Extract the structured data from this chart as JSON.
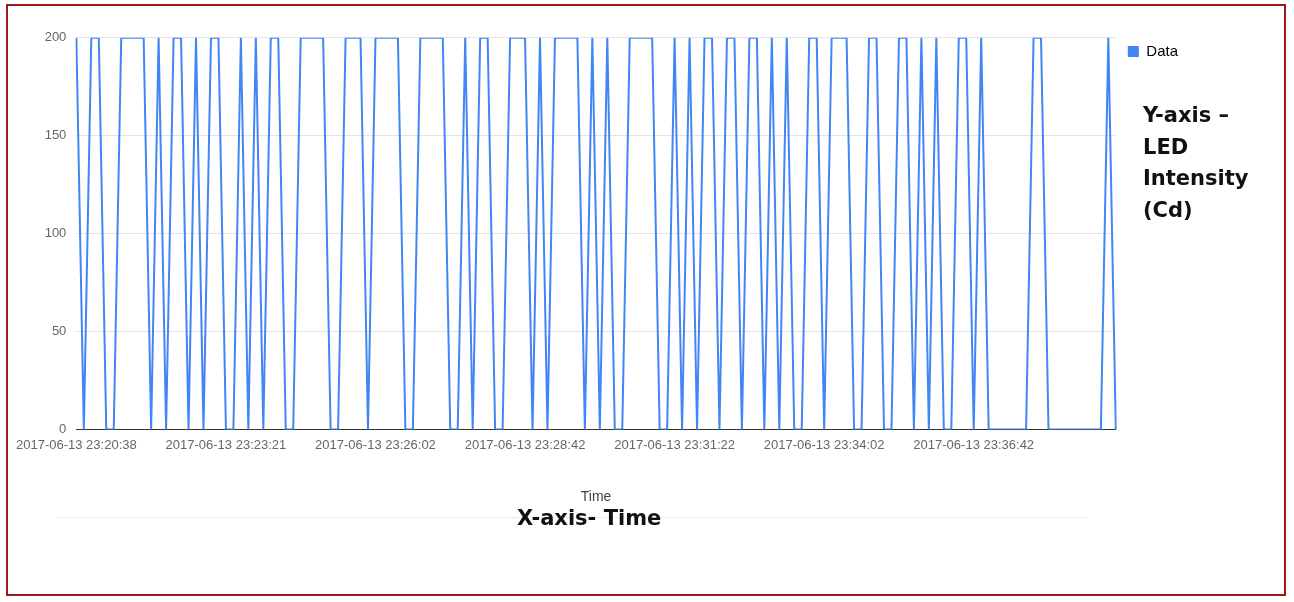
{
  "chart_data": {
    "type": "line",
    "xlabel": "Time",
    "categories": [
      "2017-06-13 23:20:38",
      null,
      null,
      null,
      null,
      null,
      null,
      null,
      null,
      null,
      null,
      null,
      null,
      null,
      null,
      null,
      null,
      null,
      null,
      null,
      "2017-06-13 23:23:21",
      null,
      null,
      null,
      null,
      null,
      null,
      null,
      null,
      null,
      null,
      null,
      null,
      null,
      null,
      null,
      null,
      null,
      null,
      null,
      "2017-06-13 23:26:02",
      null,
      null,
      null,
      null,
      null,
      null,
      null,
      null,
      null,
      null,
      null,
      null,
      null,
      null,
      null,
      null,
      null,
      null,
      null,
      "2017-06-13 23:28:42",
      null,
      null,
      null,
      null,
      null,
      null,
      null,
      null,
      null,
      null,
      null,
      null,
      null,
      null,
      null,
      null,
      null,
      null,
      null,
      "2017-06-13 23:31:22",
      null,
      null,
      null,
      null,
      null,
      null,
      null,
      null,
      null,
      null,
      null,
      null,
      null,
      null,
      null,
      null,
      null,
      null,
      null,
      "2017-06-13 23:34:02",
      null,
      null,
      null,
      null,
      null,
      null,
      null,
      null,
      null,
      null,
      null,
      null,
      null,
      null,
      null,
      null,
      null,
      null,
      null,
      "2017-06-13 23:36:42",
      null,
      null,
      null,
      null,
      null,
      null,
      null,
      null,
      null,
      null,
      null,
      null,
      null,
      null,
      null,
      null,
      null,
      null,
      null
    ],
    "series": [
      {
        "name": "Data",
        "color": "#4285f4",
        "values": [
          200,
          0,
          200,
          200,
          0,
          0,
          200,
          200,
          200,
          200,
          0,
          200,
          0,
          200,
          200,
          0,
          200,
          0,
          200,
          200,
          0,
          0,
          200,
          0,
          200,
          0,
          200,
          200,
          0,
          0,
          200,
          200,
          200,
          200,
          0,
          0,
          200,
          200,
          200,
          0,
          200,
          200,
          200,
          200,
          0,
          0,
          200,
          200,
          200,
          200,
          0,
          0,
          200,
          0,
          200,
          200,
          0,
          0,
          200,
          200,
          200,
          0,
          200,
          0,
          200,
          200,
          200,
          200,
          0,
          200,
          0,
          200,
          0,
          0,
          200,
          200,
          200,
          200,
          0,
          0,
          200,
          0,
          200,
          0,
          200,
          200,
          0,
          200,
          200,
          0,
          200,
          200,
          0,
          200,
          0,
          200,
          0,
          0,
          200,
          200,
          0,
          200,
          200,
          200,
          0,
          0,
          200,
          200,
          0,
          0,
          200,
          200,
          0,
          200,
          0,
          200,
          0,
          0,
          200,
          200,
          0,
          200,
          0,
          0,
          0,
          0,
          0,
          0,
          200,
          200,
          0,
          0,
          0,
          0,
          0,
          0,
          0,
          0,
          200,
          0
        ]
      }
    ],
    "ylim": [
      0,
      200
    ],
    "yticks": [
      0,
      50,
      100,
      150,
      200
    ],
    "grid": "y",
    "legend": "top right",
    "marker": "none",
    "line_style": "solid",
    "annotations": [
      "Y-axis – LED Intensity (Cd)",
      "X-axis- Time"
    ]
  }
}
